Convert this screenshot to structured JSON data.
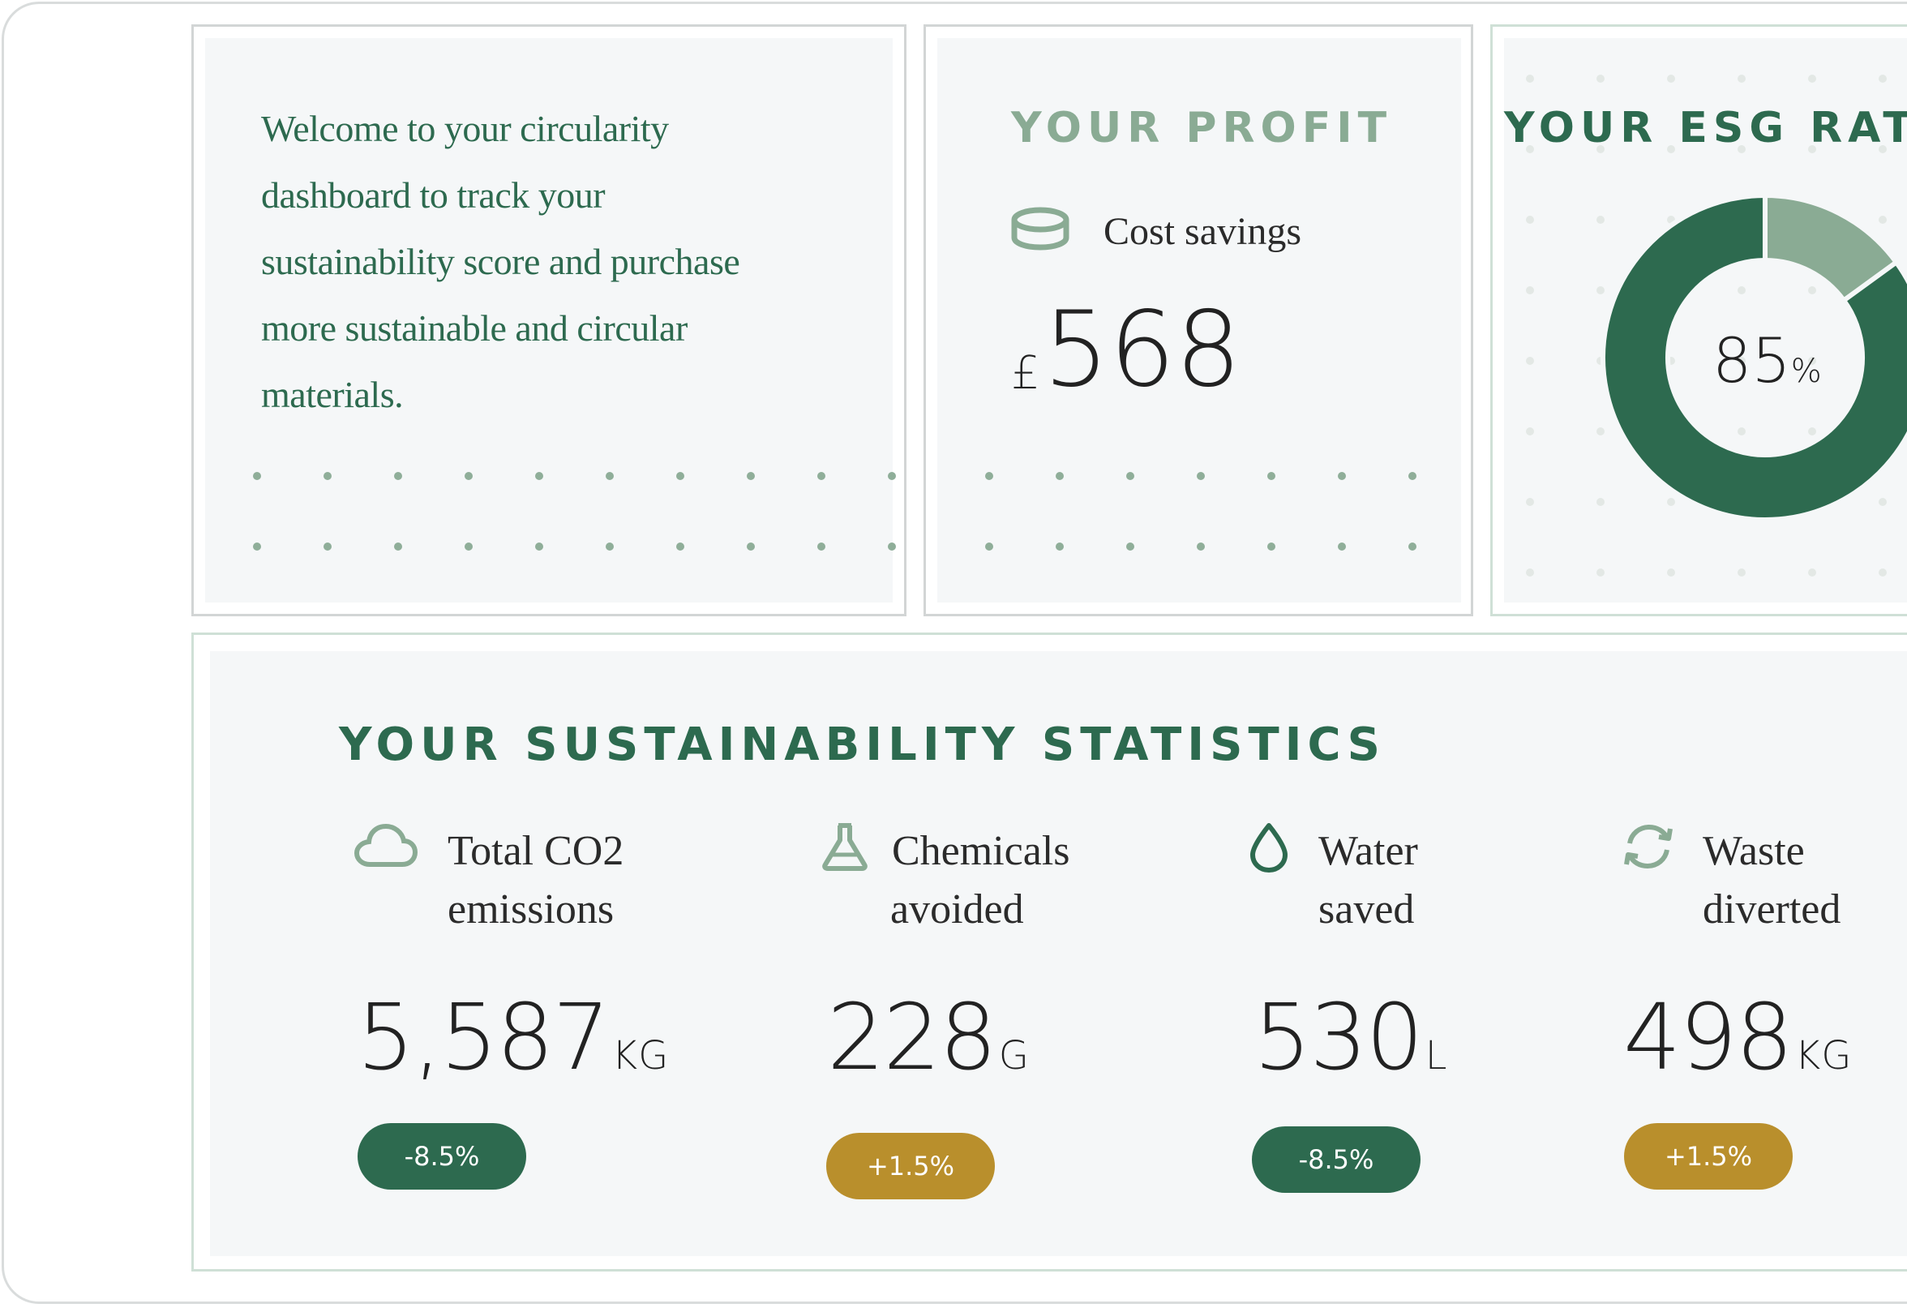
{
  "welcome": {
    "text_lines": [
      "Welcome to your circularity",
      "dashboard to track your",
      "sustainability score and purchase",
      "more sustainable and circular",
      "materials."
    ]
  },
  "profit": {
    "title": "YOUR PROFIT",
    "label": "Cost savings",
    "currency": "£",
    "amount": "568",
    "icon": "coins-icon"
  },
  "esg": {
    "title": "YOUR ESG RATIN",
    "value": "85",
    "unit": "%",
    "chart_fraction": 0.85,
    "colors": {
      "main": "#2d6a4f",
      "remainder": "#8aab94"
    }
  },
  "stats": {
    "title": "YOUR SUSTAINABILITY STATISTICS",
    "items": [
      {
        "icon": "cloud-icon",
        "label_1": "Total CO2",
        "label_2": "emissions",
        "value": "5,587",
        "unit": "KG",
        "change": "-8.5%",
        "trend": "down"
      },
      {
        "icon": "flask-icon",
        "label_1": "Chemicals",
        "label_2": "avoided",
        "value": "228",
        "unit": "G",
        "change": "+1.5%",
        "trend": "up"
      },
      {
        "icon": "water-drop-icon",
        "label_1": "Water",
        "label_2": "saved",
        "value": "530",
        "unit": "L",
        "change": "-8.5%",
        "trend": "down"
      },
      {
        "icon": "recycle-icon",
        "label_1": "Waste",
        "label_2": "diverted",
        "value": "498",
        "unit": "KG",
        "change": "+1.5%",
        "trend": "up"
      }
    ]
  },
  "colors": {
    "green": "#2d6a4f",
    "sage": "#8aab94",
    "gold": "#b98f2c",
    "card_bg": "#f5f7f8"
  }
}
